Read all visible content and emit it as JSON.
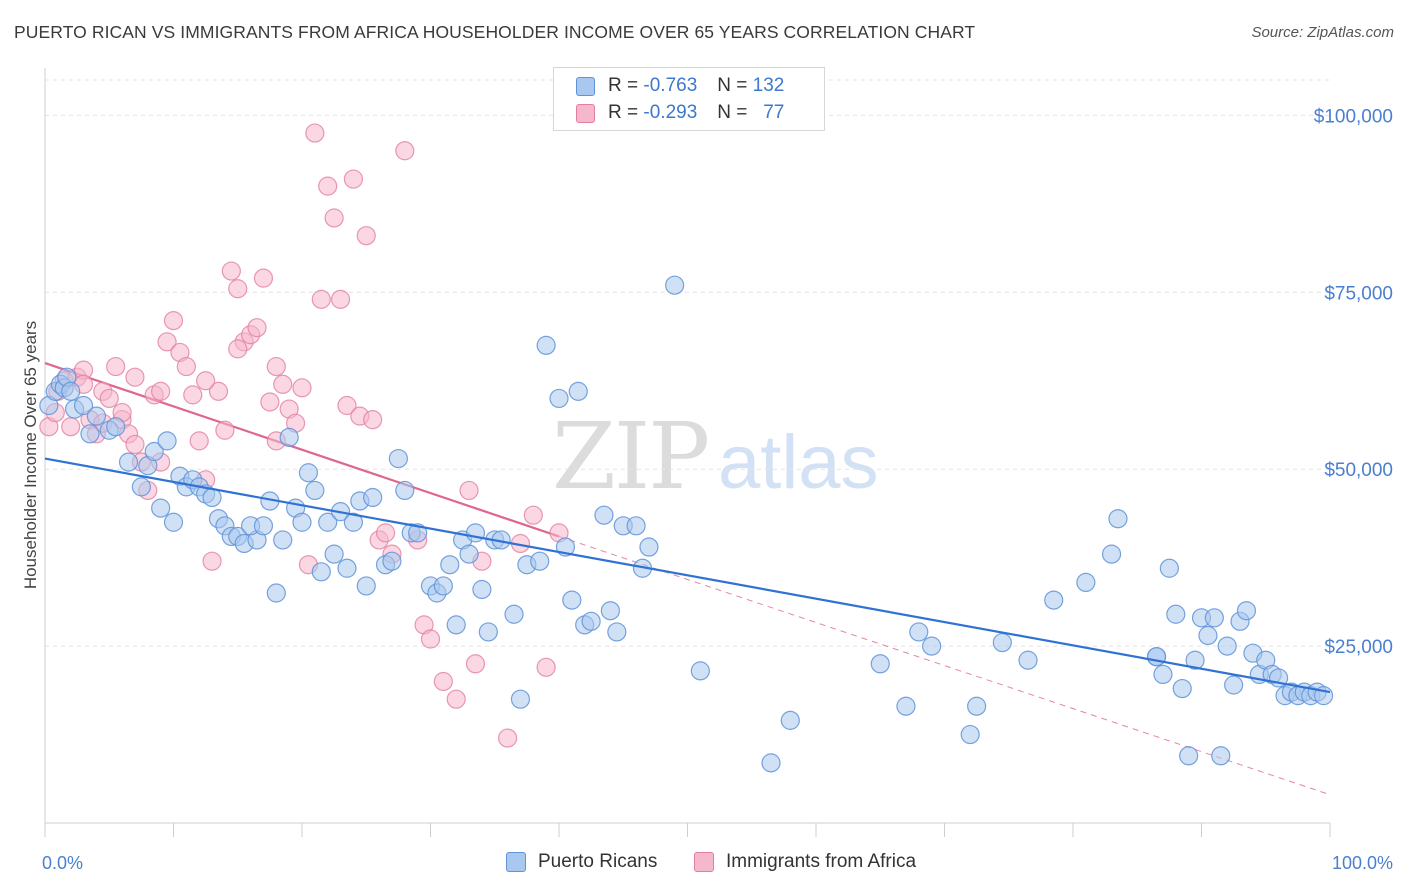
{
  "title": "PUERTO RICAN VS IMMIGRANTS FROM AFRICA HOUSEHOLDER INCOME OVER 65 YEARS CORRELATION CHART",
  "source": "Source: ZipAtlas.com",
  "watermark": {
    "part1": "ZIP",
    "part2": "atlas"
  },
  "colors": {
    "blue_fill": "#a9c8ef",
    "blue_stroke": "#5f93d8",
    "blue_line": "#2f72d4",
    "pink_fill": "#f5b7cb",
    "pink_stroke": "#e27fa1",
    "pink_line": "#e0668f",
    "tick_text": "#4a7fd0",
    "grid": "#e3e3e3"
  },
  "legend": {
    "rows": [
      {
        "r_label": "R =",
        "r_value": "-0.763",
        "n_label": "N =",
        "n_value": "132",
        "series": "blue"
      },
      {
        "r_label": "R =",
        "r_value": "-0.293",
        "n_label": "N =",
        "n_value": "77",
        "series": "pink"
      }
    ]
  },
  "bottom_legend": [
    "Puerto Ricans",
    "Immigrants from Africa"
  ],
  "chart_data": {
    "type": "scatter",
    "title": "PUERTO RICAN VS IMMIGRANTS FROM AFRICA HOUSEHOLDER INCOME OVER 65 YEARS CORRELATION CHART",
    "xlabel": "",
    "ylabel": "Householder Income Over 65 years",
    "xlim": [
      0,
      100
    ],
    "ylim": [
      0,
      105000
    ],
    "x_tick_labels": [
      "0.0%",
      "100.0%"
    ],
    "y_ticks": [
      25000,
      50000,
      75000,
      100000
    ],
    "y_tick_labels": [
      "$25,000",
      "$50,000",
      "$75,000",
      "$100,000"
    ],
    "grid": true,
    "legend_position": "top-center",
    "series": [
      {
        "name": "Puerto Ricans",
        "color": "blue",
        "trend": {
          "x": [
            0,
            100
          ],
          "y": [
            51500,
            18500
          ]
        },
        "points": [
          [
            0.3,
            59000
          ],
          [
            0.8,
            61000
          ],
          [
            1.2,
            62000
          ],
          [
            1.5,
            61500
          ],
          [
            1.7,
            63000
          ],
          [
            2.0,
            61000
          ],
          [
            2.3,
            58500
          ],
          [
            3.0,
            59000
          ],
          [
            3.5,
            55000
          ],
          [
            4.0,
            57500
          ],
          [
            5.0,
            55500
          ],
          [
            5.5,
            56000
          ],
          [
            6.5,
            51000
          ],
          [
            7.5,
            47500
          ],
          [
            8.0,
            50500
          ],
          [
            8.5,
            52500
          ],
          [
            9.0,
            44500
          ],
          [
            9.5,
            54000
          ],
          [
            10.0,
            42500
          ],
          [
            10.5,
            49000
          ],
          [
            11.0,
            47500
          ],
          [
            11.5,
            48500
          ],
          [
            12.0,
            47500
          ],
          [
            12.5,
            46500
          ],
          [
            13.0,
            46000
          ],
          [
            13.5,
            43000
          ],
          [
            14.0,
            42000
          ],
          [
            14.5,
            40500
          ],
          [
            15.0,
            40500
          ],
          [
            15.5,
            39500
          ],
          [
            16.5,
            40000
          ],
          [
            16.0,
            42000
          ],
          [
            17.0,
            42000
          ],
          [
            17.5,
            45500
          ],
          [
            18.0,
            32500
          ],
          [
            18.5,
            40000
          ],
          [
            19.0,
            54500
          ],
          [
            19.5,
            44500
          ],
          [
            20.0,
            42500
          ],
          [
            20.5,
            49500
          ],
          [
            21.0,
            47000
          ],
          [
            21.5,
            35500
          ],
          [
            22.0,
            42500
          ],
          [
            22.5,
            38000
          ],
          [
            23.0,
            44000
          ],
          [
            23.5,
            36000
          ],
          [
            24.0,
            42500
          ],
          [
            24.5,
            45500
          ],
          [
            25.0,
            33500
          ],
          [
            25.5,
            46000
          ],
          [
            26.5,
            36500
          ],
          [
            27.0,
            37000
          ],
          [
            27.5,
            51500
          ],
          [
            28.0,
            47000
          ],
          [
            28.5,
            41000
          ],
          [
            29.0,
            41000
          ],
          [
            30.0,
            33500
          ],
          [
            30.5,
            32500
          ],
          [
            31.0,
            33500
          ],
          [
            31.5,
            36500
          ],
          [
            32.0,
            28000
          ],
          [
            32.5,
            40000
          ],
          [
            33.0,
            38000
          ],
          [
            33.5,
            41000
          ],
          [
            34.0,
            33000
          ],
          [
            34.5,
            27000
          ],
          [
            35.0,
            40000
          ],
          [
            35.5,
            40000
          ],
          [
            36.5,
            29500
          ],
          [
            37.0,
            17500
          ],
          [
            37.5,
            36500
          ],
          [
            38.5,
            37000
          ],
          [
            39.0,
            67500
          ],
          [
            40.0,
            60000
          ],
          [
            40.5,
            39000
          ],
          [
            41.0,
            31500
          ],
          [
            41.5,
            61000
          ],
          [
            42.0,
            28000
          ],
          [
            42.5,
            28500
          ],
          [
            43.5,
            43500
          ],
          [
            44.0,
            30000
          ],
          [
            44.5,
            27000
          ],
          [
            45.0,
            42000
          ],
          [
            46.0,
            42000
          ],
          [
            46.5,
            36000
          ],
          [
            47.0,
            39000
          ],
          [
            49.0,
            76000
          ],
          [
            51.0,
            21500
          ],
          [
            56.5,
            8500
          ],
          [
            58.0,
            14500
          ],
          [
            65.0,
            22500
          ],
          [
            67.0,
            16500
          ],
          [
            68.0,
            27000
          ],
          [
            69.0,
            25000
          ],
          [
            72.0,
            12500
          ],
          [
            72.5,
            16500
          ],
          [
            74.5,
            25500
          ],
          [
            76.5,
            23000
          ],
          [
            78.5,
            31500
          ],
          [
            81.0,
            34000
          ],
          [
            83.0,
            38000
          ],
          [
            83.5,
            43000
          ],
          [
            86.5,
            23500
          ],
          [
            87.0,
            21000
          ],
          [
            87.5,
            36000
          ],
          [
            88.0,
            29500
          ],
          [
            88.5,
            19000
          ],
          [
            89.0,
            9500
          ],
          [
            89.5,
            23000
          ],
          [
            90.0,
            29000
          ],
          [
            90.5,
            26500
          ],
          [
            91.0,
            29000
          ],
          [
            91.5,
            9500
          ],
          [
            92.0,
            25000
          ],
          [
            92.5,
            19500
          ],
          [
            93.0,
            28500
          ],
          [
            93.5,
            30000
          ],
          [
            94.0,
            24000
          ],
          [
            94.5,
            21000
          ],
          [
            95.0,
            23000
          ],
          [
            95.5,
            21000
          ],
          [
            96.0,
            20500
          ],
          [
            96.5,
            18000
          ],
          [
            97.0,
            18500
          ],
          [
            97.5,
            18000
          ],
          [
            98.0,
            18500
          ],
          [
            98.5,
            18000
          ],
          [
            99.0,
            18500
          ],
          [
            99.5,
            18000
          ],
          [
            86.5,
            23500
          ]
        ]
      },
      {
        "name": "Immigrants from Africa",
        "color": "pink",
        "trend": {
          "x": [
            0,
            40
          ],
          "y": [
            65000,
            40500
          ]
        },
        "trend_extension": {
          "x": [
            40,
            100
          ],
          "y": [
            40500,
            4000
          ]
        },
        "points": [
          [
            0.3,
            56000
          ],
          [
            0.8,
            58000
          ],
          [
            1.0,
            61000
          ],
          [
            1.5,
            62500
          ],
          [
            2.0,
            56000
          ],
          [
            2.5,
            63000
          ],
          [
            3.0,
            64000
          ],
          [
            3.5,
            57000
          ],
          [
            4.0,
            55000
          ],
          [
            4.5,
            61000
          ],
          [
            5.0,
            60000
          ],
          [
            5.5,
            64500
          ],
          [
            6.0,
            57000
          ],
          [
            6.5,
            55000
          ],
          [
            7.0,
            53500
          ],
          [
            7.5,
            51000
          ],
          [
            8.0,
            47000
          ],
          [
            8.5,
            60500
          ],
          [
            9.0,
            61000
          ],
          [
            9.5,
            68000
          ],
          [
            10.0,
            71000
          ],
          [
            10.5,
            66500
          ],
          [
            11.0,
            64500
          ],
          [
            11.5,
            60500
          ],
          [
            12.0,
            54000
          ],
          [
            12.5,
            48500
          ],
          [
            13.0,
            37000
          ],
          [
            13.5,
            61000
          ],
          [
            14.0,
            55500
          ],
          [
            14.5,
            78000
          ],
          [
            15.0,
            75500
          ],
          [
            15.5,
            68000
          ],
          [
            16.0,
            69000
          ],
          [
            16.5,
            70000
          ],
          [
            17.0,
            77000
          ],
          [
            17.5,
            59500
          ],
          [
            18.0,
            64500
          ],
          [
            18.5,
            62000
          ],
          [
            19.0,
            58500
          ],
          [
            19.5,
            56500
          ],
          [
            20.0,
            61500
          ],
          [
            20.5,
            36500
          ],
          [
            21.0,
            97500
          ],
          [
            21.5,
            74000
          ],
          [
            22.0,
            90000
          ],
          [
            22.5,
            85500
          ],
          [
            23.0,
            74000
          ],
          [
            23.5,
            59000
          ],
          [
            24.0,
            91000
          ],
          [
            24.5,
            57500
          ],
          [
            25.0,
            83000
          ],
          [
            25.5,
            57000
          ],
          [
            26.0,
            40000
          ],
          [
            26.5,
            41000
          ],
          [
            27.0,
            38000
          ],
          [
            28.0,
            95000
          ],
          [
            29.0,
            40000
          ],
          [
            29.5,
            28000
          ],
          [
            30.0,
            26000
          ],
          [
            31.0,
            20000
          ],
          [
            32.0,
            17500
          ],
          [
            33.0,
            47000
          ],
          [
            33.5,
            22500
          ],
          [
            34.0,
            37000
          ],
          [
            36.0,
            12000
          ],
          [
            37.0,
            39500
          ],
          [
            38.0,
            43500
          ],
          [
            39.0,
            22000
          ],
          [
            40.0,
            41000
          ],
          [
            9.0,
            51000
          ],
          [
            3.0,
            62000
          ],
          [
            4.5,
            56500
          ],
          [
            7.0,
            63000
          ],
          [
            6.0,
            58000
          ],
          [
            12.5,
            62500
          ],
          [
            18.0,
            54000
          ],
          [
            15.0,
            67000
          ]
        ]
      }
    ]
  }
}
